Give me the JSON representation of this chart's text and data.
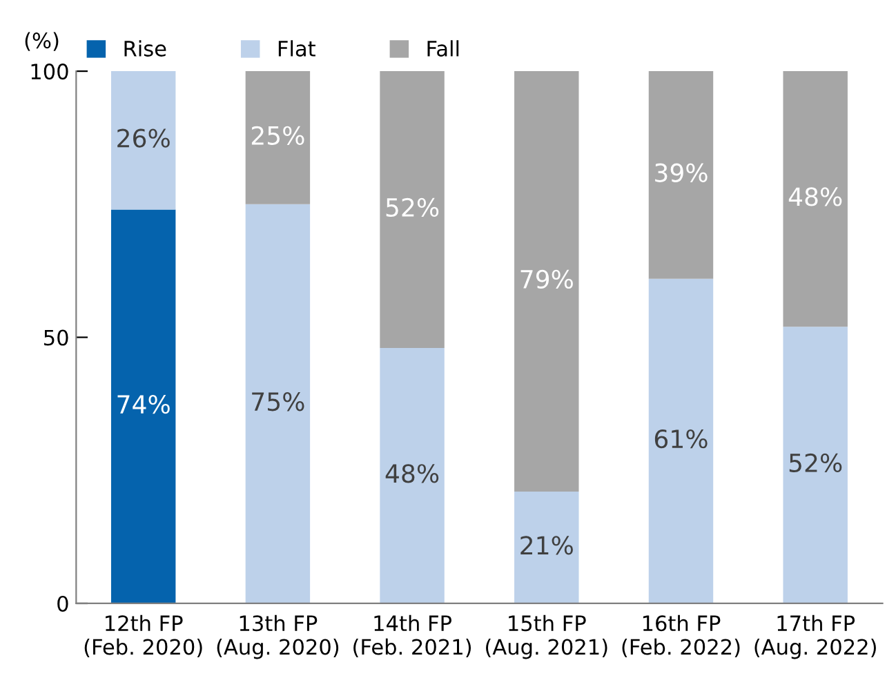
{
  "chart_data": {
    "type": "bar",
    "stacked": true,
    "ylabel": "(%)",
    "categories": [
      "12th FP\n(Feb. 2020)",
      "13th FP\n(Aug. 2020)",
      "14th FP\n(Feb. 2021)",
      "15th FP\n(Aug. 2021)",
      "16th FP\n(Feb. 2022)",
      "17th FP\n(Aug. 2022)"
    ],
    "series": [
      {
        "name": "Rise",
        "color": "#0563ad",
        "values": [
          74,
          0,
          0,
          0,
          0,
          0
        ],
        "value_labels": [
          "74%",
          null,
          null,
          null,
          null,
          null
        ]
      },
      {
        "name": "Flat",
        "color": "#bdd1ea",
        "values": [
          26,
          75,
          48,
          21,
          61,
          52
        ],
        "value_labels": [
          "26%",
          "75%",
          "48%",
          "21%",
          "61%",
          "52%"
        ]
      },
      {
        "name": "Fall",
        "color": "#a6a6a6",
        "values": [
          0,
          25,
          52,
          79,
          39,
          48
        ],
        "value_labels": [
          null,
          "25%",
          "52%",
          "79%",
          "39%",
          "48%"
        ]
      }
    ],
    "ylim": [
      0,
      100
    ],
    "yticks": [
      0,
      50,
      100
    ],
    "grid": false,
    "legend": "top"
  }
}
